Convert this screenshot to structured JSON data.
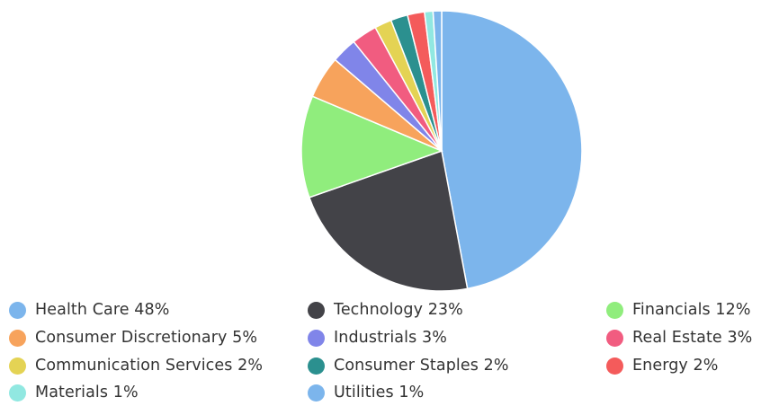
{
  "chart_data": {
    "type": "pie",
    "title": "",
    "categories": [
      "Health Care",
      "Technology",
      "Financials",
      "Consumer Discretionary",
      "Industrials",
      "Real Estate",
      "Communication Services",
      "Consumer Staples",
      "Energy",
      "Materials",
      "Utilities"
    ],
    "values": [
      48,
      23,
      12,
      5,
      3,
      3,
      2,
      2,
      2,
      1,
      1
    ],
    "colors": [
      "#7cb5ec",
      "#434348",
      "#90ed7d",
      "#f7a35c",
      "#8085e9",
      "#f15c80",
      "#e4d354",
      "#2b908f",
      "#f45b5b",
      "#91e8e1",
      "#7cb5ec"
    ],
    "legend_labels": [
      "Health Care 48%",
      "Technology 23%",
      "Financials 12%",
      "Consumer Discretionary 5%",
      "Industrials 3%",
      "Real Estate 3%",
      "Communication Services 2%",
      "Consumer Staples 2%",
      "Energy 2%",
      "Materials 1%",
      "Utilities 1%"
    ],
    "legend_position": "bottom",
    "legend_columns": 3
  }
}
